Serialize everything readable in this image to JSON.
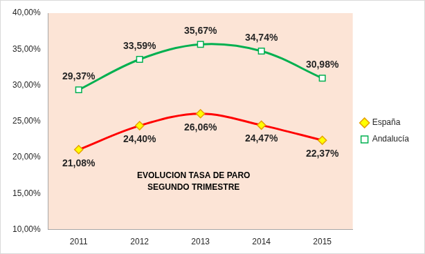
{
  "chart_data": {
    "type": "line",
    "title": "EVOLUCION TASA DE PARO\nSEGUNDO TRIMESTRE",
    "categories": [
      "2011",
      "2012",
      "2013",
      "2014",
      "2015"
    ],
    "series": [
      {
        "name": "España",
        "color": "#FF0000",
        "marker": "diamond",
        "values": [
          21.08,
          24.4,
          26.06,
          24.47,
          22.37
        ],
        "value_labels": [
          "21,08%",
          "24,40%",
          "26,06%",
          "24,47%",
          "22,37%"
        ]
      },
      {
        "name": "Andalucía",
        "color": "#00B050",
        "marker": "square",
        "values": [
          29.37,
          33.59,
          35.67,
          34.74,
          30.98
        ],
        "value_labels": [
          "29,37%",
          "33,59%",
          "35,67%",
          "34,74%",
          "30,98%"
        ]
      }
    ],
    "ylim": [
      10,
      40
    ],
    "yticks": [
      {
        "value": 10,
        "label": "10,00%"
      },
      {
        "value": 15,
        "label": "15,00%"
      },
      {
        "value": 20,
        "label": "20,00%"
      },
      {
        "value": 25,
        "label": "25,00%"
      },
      {
        "value": 30,
        "label": "30,00%"
      },
      {
        "value": 35,
        "label": "35,00%"
      },
      {
        "value": 40,
        "label": "40,00%"
      }
    ],
    "grid": false,
    "legend": "right",
    "data_labels": true
  }
}
